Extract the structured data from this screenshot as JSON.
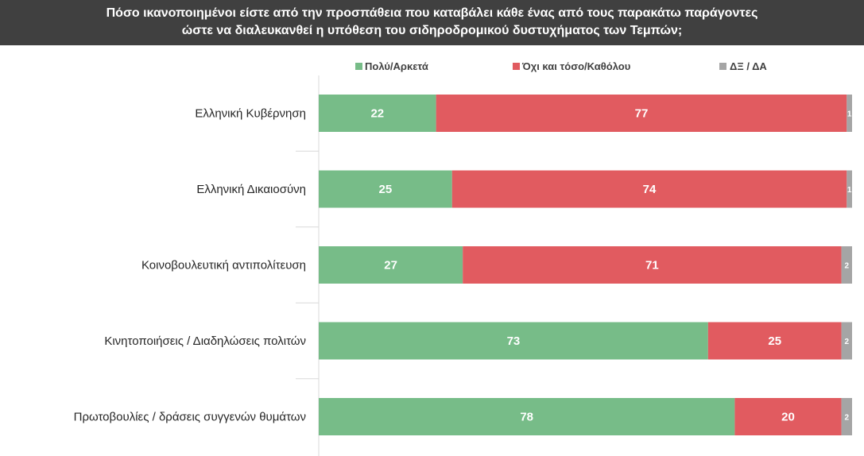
{
  "chart_data": {
    "type": "bar",
    "orientation": "horizontal",
    "stacked": true,
    "title": "Πόσο ικανοποιημένοι είστε από την προσπάθεια που καταβάλει κάθε ένας από τους παρακάτω παράγοντες\nώστε να διαλευκανθεί η υπόθεση του σιδηροδρομικού δυστυχήματος των Τεμπών;",
    "categories": [
      "Ελληνική Κυβέρνηση",
      "Ελληνική Δικαιοσύνη",
      "Κοινοβουλευτική αντιπολίτευση",
      "Κινητοποιήσεις / Διαδηλώσεις πολιτών",
      "Πρωτοβουλίες / δράσεις συγγενών θυμάτων"
    ],
    "series": [
      {
        "name": "Πολύ/Αρκετά",
        "color": "#77bc88",
        "values": [
          22,
          25,
          27,
          73,
          78
        ]
      },
      {
        "name": "Όχι και τόσο/Καθόλου",
        "color": "#e15b60",
        "values": [
          77,
          74,
          71,
          25,
          20
        ]
      },
      {
        "name": "ΔΞ / ΔΑ",
        "color": "#a5a5a5",
        "values": [
          1,
          1,
          2,
          2,
          2
        ]
      }
    ],
    "xlim": [
      0,
      100
    ],
    "legend": "top",
    "grid": false
  }
}
